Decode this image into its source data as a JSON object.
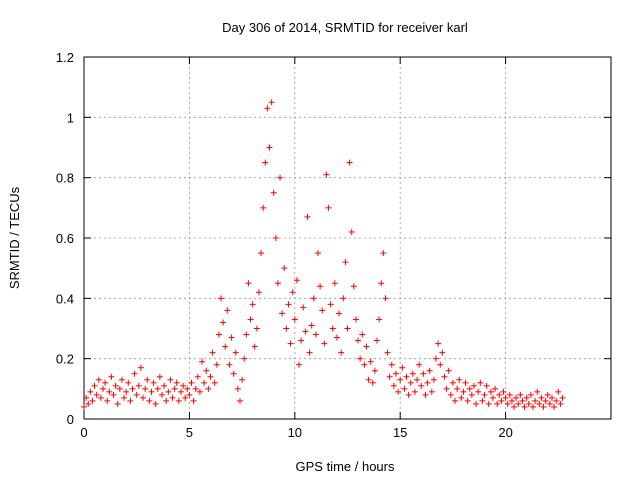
{
  "chart_data": {
    "type": "scatter",
    "title": "Day 306 of 2014, SRMTID for receiver karl",
    "xlabel": "GPS time / hours",
    "ylabel": "SRMTID / TECUs",
    "xlim": [
      0,
      25
    ],
    "ylim": [
      0,
      1.2
    ],
    "xticks": [
      0,
      5,
      10,
      15,
      20
    ],
    "yticks": [
      0,
      0.2,
      0.4,
      0.6,
      0.8,
      1,
      1.2
    ],
    "xtick_labels": [
      "0",
      "5",
      "10",
      "15",
      "20"
    ],
    "ytick_labels": [
      "0",
      "0.2",
      "0.4",
      "0.6",
      "0.8",
      "1",
      "1.2"
    ],
    "grid": true,
    "marker": "+",
    "series": [
      {
        "name": "SRMTID",
        "color": "#ff0000",
        "points": [
          [
            0.0,
            0.04
          ],
          [
            0.1,
            0.07
          ],
          [
            0.2,
            0.05
          ],
          [
            0.3,
            0.09
          ],
          [
            0.4,
            0.06
          ],
          [
            0.5,
            0.11
          ],
          [
            0.6,
            0.08
          ],
          [
            0.7,
            0.13
          ],
          [
            0.8,
            0.07
          ],
          [
            0.9,
            0.1
          ],
          [
            1.0,
            0.12
          ],
          [
            1.1,
            0.06
          ],
          [
            1.2,
            0.09
          ],
          [
            1.3,
            0.14
          ],
          [
            1.4,
            0.08
          ],
          [
            1.5,
            0.11
          ],
          [
            1.6,
            0.05
          ],
          [
            1.7,
            0.1
          ],
          [
            1.8,
            0.13
          ],
          [
            1.9,
            0.07
          ],
          [
            2.0,
            0.09
          ],
          [
            2.1,
            0.12
          ],
          [
            2.2,
            0.06
          ],
          [
            2.3,
            0.1
          ],
          [
            2.4,
            0.15
          ],
          [
            2.5,
            0.08
          ],
          [
            2.6,
            0.11
          ],
          [
            2.7,
            0.17
          ],
          [
            2.8,
            0.07
          ],
          [
            2.9,
            0.1
          ],
          [
            3.0,
            0.13
          ],
          [
            3.1,
            0.06
          ],
          [
            3.2,
            0.09
          ],
          [
            3.3,
            0.12
          ],
          [
            3.4,
            0.05
          ],
          [
            3.5,
            0.1
          ],
          [
            3.6,
            0.14
          ],
          [
            3.7,
            0.08
          ],
          [
            3.8,
            0.11
          ],
          [
            3.9,
            0.06
          ],
          [
            4.0,
            0.09
          ],
          [
            4.1,
            0.13
          ],
          [
            4.2,
            0.07
          ],
          [
            4.3,
            0.1
          ],
          [
            4.4,
            0.12
          ],
          [
            4.5,
            0.06
          ],
          [
            4.6,
            0.09
          ],
          [
            4.7,
            0.11
          ],
          [
            4.8,
            0.07
          ],
          [
            4.9,
            0.1
          ],
          [
            5.0,
            0.08
          ],
          [
            5.1,
            0.12
          ],
          [
            5.2,
            0.06
          ],
          [
            5.3,
            0.1
          ],
          [
            5.4,
            0.14
          ],
          [
            5.5,
            0.09
          ],
          [
            5.6,
            0.19
          ],
          [
            5.7,
            0.12
          ],
          [
            5.8,
            0.16
          ],
          [
            5.9,
            0.1
          ],
          [
            6.0,
            0.14
          ],
          [
            6.1,
            0.22
          ],
          [
            6.2,
            0.12
          ],
          [
            6.3,
            0.18
          ],
          [
            6.4,
            0.28
          ],
          [
            6.5,
            0.4
          ],
          [
            6.6,
            0.32
          ],
          [
            6.7,
            0.24
          ],
          [
            6.8,
            0.36
          ],
          [
            6.9,
            0.18
          ],
          [
            7.0,
            0.27
          ],
          [
            7.1,
            0.15
          ],
          [
            7.2,
            0.22
          ],
          [
            7.3,
            0.1
          ],
          [
            7.4,
            0.06
          ],
          [
            7.5,
            0.13
          ],
          [
            7.6,
            0.2
          ],
          [
            7.7,
            0.28
          ],
          [
            7.8,
            0.45
          ],
          [
            7.9,
            0.33
          ],
          [
            8.0,
            0.38
          ],
          [
            8.1,
            0.24
          ],
          [
            8.2,
            0.3
          ],
          [
            8.3,
            0.42
          ],
          [
            8.4,
            0.55
          ],
          [
            8.5,
            0.7
          ],
          [
            8.6,
            0.85
          ],
          [
            8.7,
            1.03
          ],
          [
            8.8,
            0.9
          ],
          [
            8.9,
            1.05
          ],
          [
            9.0,
            0.75
          ],
          [
            9.1,
            0.6
          ],
          [
            9.2,
            0.45
          ],
          [
            9.3,
            0.8
          ],
          [
            9.4,
            0.35
          ],
          [
            9.5,
            0.5
          ],
          [
            9.6,
            0.3
          ],
          [
            9.7,
            0.38
          ],
          [
            9.8,
            0.25
          ],
          [
            9.9,
            0.42
          ],
          [
            10.0,
            0.33
          ],
          [
            10.1,
            0.46
          ],
          [
            10.2,
            0.18
          ],
          [
            10.3,
            0.26
          ],
          [
            10.4,
            0.37
          ],
          [
            10.5,
            0.29
          ],
          [
            10.6,
            0.67
          ],
          [
            10.7,
            0.22
          ],
          [
            10.8,
            0.31
          ],
          [
            10.9,
            0.4
          ],
          [
            11.0,
            0.28
          ],
          [
            11.1,
            0.55
          ],
          [
            11.2,
            0.44
          ],
          [
            11.3,
            0.36
          ],
          [
            11.4,
            0.25
          ],
          [
            11.5,
            0.81
          ],
          [
            11.6,
            0.7
          ],
          [
            11.7,
            0.38
          ],
          [
            11.8,
            0.3
          ],
          [
            11.9,
            0.45
          ],
          [
            12.0,
            0.27
          ],
          [
            12.1,
            0.35
          ],
          [
            12.2,
            0.22
          ],
          [
            12.3,
            0.4
          ],
          [
            12.4,
            0.52
          ],
          [
            12.5,
            0.3
          ],
          [
            12.6,
            0.85
          ],
          [
            12.7,
            0.62
          ],
          [
            12.8,
            0.44
          ],
          [
            12.9,
            0.33
          ],
          [
            13.0,
            0.26
          ],
          [
            13.1,
            0.2
          ],
          [
            13.2,
            0.28
          ],
          [
            13.3,
            0.18
          ],
          [
            13.4,
            0.24
          ],
          [
            13.5,
            0.13
          ],
          [
            13.6,
            0.19
          ],
          [
            13.7,
            0.12
          ],
          [
            13.8,
            0.16
          ],
          [
            13.9,
            0.26
          ],
          [
            14.0,
            0.33
          ],
          [
            14.1,
            0.45
          ],
          [
            14.2,
            0.55
          ],
          [
            14.3,
            0.4
          ],
          [
            14.4,
            0.22
          ],
          [
            14.5,
            0.14
          ],
          [
            14.6,
            0.18
          ],
          [
            14.7,
            0.11
          ],
          [
            14.8,
            0.15
          ],
          [
            14.9,
            0.09
          ],
          [
            15.0,
            0.13
          ],
          [
            15.1,
            0.17
          ],
          [
            15.2,
            0.1
          ],
          [
            15.3,
            0.14
          ],
          [
            15.4,
            0.08
          ],
          [
            15.5,
            0.12
          ],
          [
            15.6,
            0.15
          ],
          [
            15.7,
            0.09
          ],
          [
            15.8,
            0.13
          ],
          [
            15.9,
            0.18
          ],
          [
            16.0,
            0.11
          ],
          [
            16.1,
            0.15
          ],
          [
            16.2,
            0.08
          ],
          [
            16.3,
            0.12
          ],
          [
            16.4,
            0.16
          ],
          [
            16.5,
            0.09
          ],
          [
            16.6,
            0.13
          ],
          [
            16.7,
            0.2
          ],
          [
            16.8,
            0.25
          ],
          [
            16.9,
            0.18
          ],
          [
            17.0,
            0.22
          ],
          [
            17.1,
            0.14
          ],
          [
            17.2,
            0.1
          ],
          [
            17.3,
            0.16
          ],
          [
            17.4,
            0.08
          ],
          [
            17.5,
            0.12
          ],
          [
            17.6,
            0.06
          ],
          [
            17.7,
            0.1
          ],
          [
            17.8,
            0.13
          ],
          [
            17.9,
            0.07
          ],
          [
            18.0,
            0.09
          ],
          [
            18.1,
            0.12
          ],
          [
            18.2,
            0.06
          ],
          [
            18.3,
            0.1
          ],
          [
            18.4,
            0.08
          ],
          [
            18.5,
            0.11
          ],
          [
            18.6,
            0.05
          ],
          [
            18.7,
            0.09
          ],
          [
            18.8,
            0.12
          ],
          [
            18.9,
            0.06
          ],
          [
            19.0,
            0.08
          ],
          [
            19.1,
            0.11
          ],
          [
            19.2,
            0.05
          ],
          [
            19.3,
            0.09
          ],
          [
            19.4,
            0.07
          ],
          [
            19.5,
            0.1
          ],
          [
            19.6,
            0.05
          ],
          [
            19.7,
            0.08
          ],
          [
            19.8,
            0.06
          ],
          [
            19.9,
            0.09
          ],
          [
            20.0,
            0.07
          ],
          [
            20.1,
            0.05
          ],
          [
            20.2,
            0.08
          ],
          [
            20.3,
            0.06
          ],
          [
            20.4,
            0.04
          ],
          [
            20.5,
            0.07
          ],
          [
            20.6,
            0.05
          ],
          [
            20.7,
            0.08
          ],
          [
            20.8,
            0.06
          ],
          [
            20.9,
            0.04
          ],
          [
            21.0,
            0.07
          ],
          [
            21.1,
            0.05
          ],
          [
            21.2,
            0.08
          ],
          [
            21.3,
            0.04
          ],
          [
            21.4,
            0.06
          ],
          [
            21.5,
            0.09
          ],
          [
            21.6,
            0.05
          ],
          [
            21.7,
            0.07
          ],
          [
            21.8,
            0.04
          ],
          [
            21.9,
            0.06
          ],
          [
            22.0,
            0.08
          ],
          [
            22.1,
            0.05
          ],
          [
            22.2,
            0.07
          ],
          [
            22.3,
            0.04
          ],
          [
            22.4,
            0.06
          ],
          [
            22.5,
            0.09
          ],
          [
            22.6,
            0.05
          ],
          [
            22.7,
            0.07
          ]
        ]
      }
    ]
  }
}
